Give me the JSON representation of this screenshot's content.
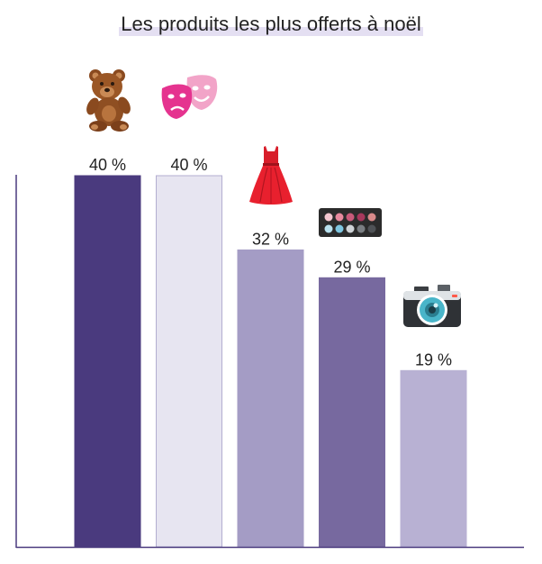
{
  "chart_data": {
    "type": "bar",
    "title": "Les produits les plus offerts à noël",
    "categories": [
      {
        "icon": "teddy-bear-icon",
        "value": 40,
        "label": "40 %",
        "color": "#4a3a7e",
        "stroke": "#4a3a7e"
      },
      {
        "icon": "theater-masks-icon",
        "value": 40,
        "label": "40 %",
        "color": "#e7e5f1",
        "stroke": "#b3aed0"
      },
      {
        "icon": "dress-icon",
        "value": 32,
        "label": "32 %",
        "color": "#a49cc5",
        "stroke": "#a49cc5"
      },
      {
        "icon": "makeup-palette-icon",
        "value": 29,
        "label": "29 %",
        "color": "#77699f",
        "stroke": "#77699f"
      },
      {
        "icon": "camera-icon",
        "value": 19,
        "label": "19 %",
        "color": "#b8b1d3",
        "stroke": "#b8b1d3"
      }
    ],
    "ylim": [
      0,
      40
    ],
    "grid": false,
    "axis_color": "#4a3a7e"
  }
}
